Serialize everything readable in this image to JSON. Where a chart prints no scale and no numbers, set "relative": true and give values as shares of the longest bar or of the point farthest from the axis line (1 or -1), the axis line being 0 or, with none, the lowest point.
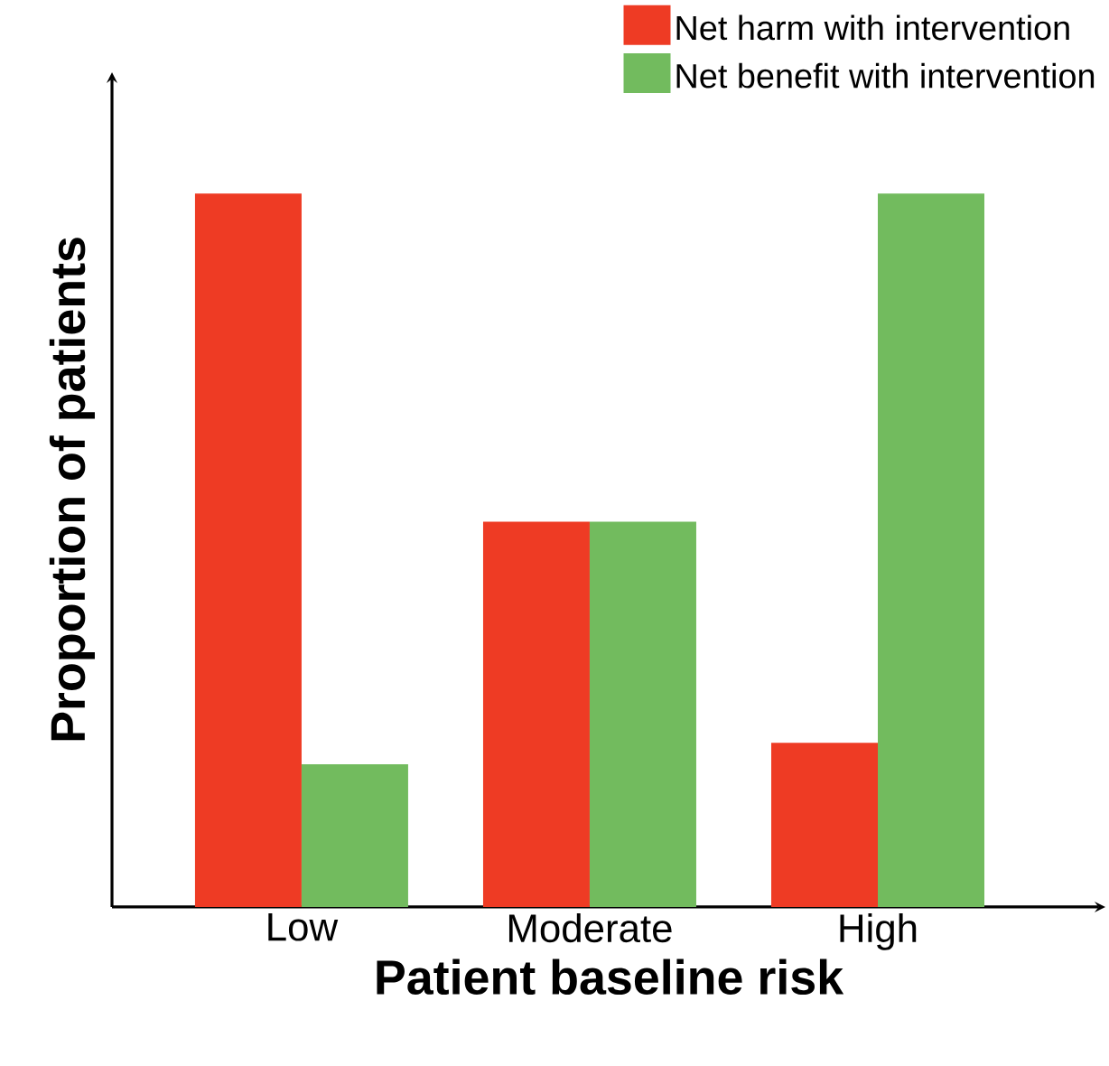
{
  "chart_data": {
    "type": "bar",
    "xlabel": "Patient baseline risk",
    "ylabel": "Proportion of patients",
    "categories": [
      "Low",
      "Moderate",
      "High"
    ],
    "relative": true,
    "legend": "top right",
    "series": [
      {
        "name": "Net harm with intervention",
        "color": "#ee3b24",
        "values": [
          1,
          0.54,
          0.23
        ]
      },
      {
        "name": "Net benefit with intervention",
        "color": "#72bb5e",
        "values": [
          0.2,
          0.54,
          1
        ]
      }
    ]
  }
}
